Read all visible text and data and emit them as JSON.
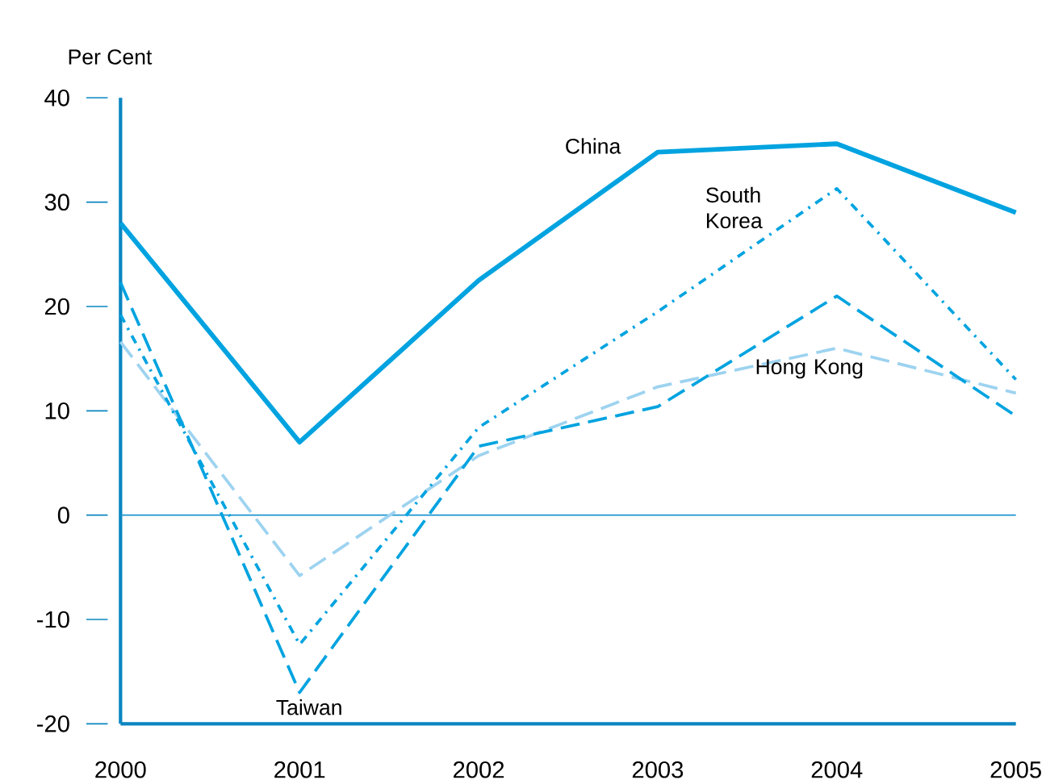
{
  "chart_data": {
    "type": "line",
    "ylabel": "Per Cent",
    "x": [
      2000,
      2001,
      2002,
      2003,
      2004,
      2005
    ],
    "series": [
      {
        "name": "China",
        "color": "#00a3e0",
        "line_style": "solid",
        "values": [
          28.0,
          7.0,
          22.5,
          34.8,
          35.6,
          29.0
        ]
      },
      {
        "name": "South Korea",
        "color": "#00a3e0",
        "line_style": "dotted",
        "values": [
          19.2,
          -12.4,
          8.4,
          19.5,
          31.3,
          13.0
        ]
      },
      {
        "name": "Taiwan",
        "color": "#00a3e0",
        "line_style": "dashed",
        "values": [
          22.3,
          -17.0,
          6.6,
          10.4,
          21.0,
          9.5
        ]
      },
      {
        "name": "Hong Kong",
        "color": "#9dd3f0",
        "line_style": "dashed",
        "values": [
          16.6,
          -5.8,
          5.7,
          12.3,
          16.0,
          11.7
        ]
      }
    ],
    "xlim": [
      2000,
      2005
    ],
    "ylim": [
      -20,
      40
    ],
    "xticks": [
      2000,
      2001,
      2002,
      2003,
      2004,
      2005
    ],
    "yticks": [
      -20,
      -10,
      0,
      10,
      20,
      30,
      40
    ],
    "ref_lines": [
      {
        "axis": "y",
        "value": 0,
        "color": "#1b95d0"
      }
    ],
    "grid": false,
    "legend": false
  }
}
